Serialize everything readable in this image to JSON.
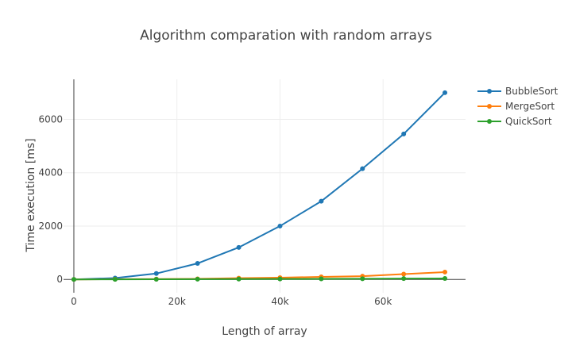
{
  "chart_data": {
    "type": "line",
    "title": "Algorithm comparation with random arrays",
    "xlabel": "Length of array",
    "ylabel": "Time execution [ms]",
    "xlim": [
      -2000,
      76000
    ],
    "ylim": [
      -500,
      7500
    ],
    "x_ticks": [
      0,
      20000,
      40000,
      60000
    ],
    "x_tick_labels": [
      "0",
      "20k",
      "40k",
      "60k"
    ],
    "y_ticks": [
      0,
      2000,
      4000,
      6000
    ],
    "y_tick_labels": [
      "0",
      "2000",
      "4000",
      "6000"
    ],
    "grid": true,
    "legend_position": "top-right",
    "x": [
      0,
      8000,
      16000,
      24000,
      32000,
      40000,
      48000,
      56000,
      64000,
      72000
    ],
    "series": [
      {
        "name": "BubbleSort",
        "color": "#1f77b4",
        "values": [
          0,
          50,
          220,
          600,
          1200,
          2000,
          2930,
          4150,
          5450,
          7000
        ]
      },
      {
        "name": "MergeSort",
        "color": "#ff7f0e",
        "values": [
          0,
          8,
          12,
          20,
          45,
          65,
          95,
          120,
          200,
          275
        ]
      },
      {
        "name": "QuickSort",
        "color": "#2ca02c",
        "values": [
          0,
          2,
          5,
          8,
          12,
          16,
          20,
          24,
          30,
          35
        ]
      }
    ]
  }
}
